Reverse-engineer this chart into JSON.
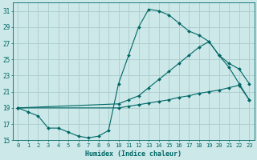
{
  "xlabel": "Humidex (Indice chaleur)",
  "bg_color": "#cce8e8",
  "grid_color": "#aacccc",
  "line_color": "#006666",
  "xlim": [
    -0.5,
    23.5
  ],
  "ylim": [
    15,
    32
  ],
  "yticks": [
    15,
    17,
    19,
    21,
    23,
    25,
    27,
    29,
    31
  ],
  "xticks": [
    0,
    1,
    2,
    3,
    4,
    5,
    6,
    7,
    8,
    9,
    10,
    11,
    12,
    13,
    14,
    15,
    16,
    17,
    18,
    19,
    20,
    21,
    22,
    23
  ],
  "line1_x": [
    0,
    1,
    2,
    3,
    4,
    5,
    6,
    7,
    8,
    9,
    10,
    11,
    12,
    13,
    14,
    15,
    16,
    17,
    18,
    19,
    20,
    21,
    22,
    23
  ],
  "line1_y": [
    19,
    18.5,
    18.0,
    16.5,
    16.5,
    16.0,
    15.5,
    15.3,
    15.5,
    16.2,
    22.0,
    25.5,
    29.0,
    31.2,
    31.0,
    30.5,
    29.5,
    28.5,
    28.0,
    27.2,
    25.5,
    24.0,
    22.0,
    20.0
  ],
  "line2_x": [
    0,
    10,
    11,
    12,
    13,
    14,
    15,
    16,
    17,
    18,
    19,
    20,
    21,
    22,
    23
  ],
  "line2_y": [
    19,
    19.5,
    20.0,
    20.5,
    21.5,
    22.5,
    23.5,
    24.5,
    25.5,
    26.5,
    27.2,
    25.5,
    24.5,
    23.8,
    22.0
  ],
  "line3_x": [
    0,
    10,
    11,
    12,
    13,
    14,
    15,
    16,
    17,
    18,
    19,
    20,
    21,
    22,
    23
  ],
  "line3_y": [
    19,
    19.0,
    19.2,
    19.4,
    19.6,
    19.8,
    20.0,
    20.3,
    20.5,
    20.8,
    21.0,
    21.2,
    21.5,
    21.8,
    20.0
  ]
}
